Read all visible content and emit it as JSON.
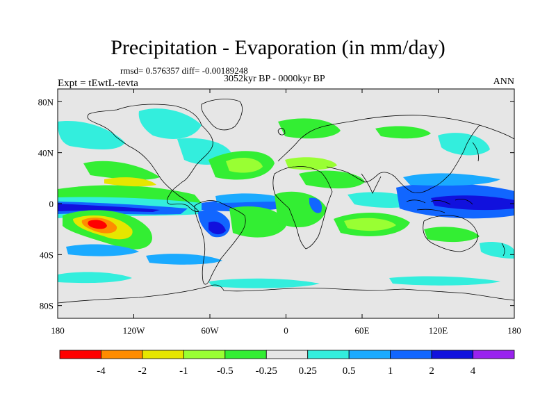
{
  "header": {
    "title": "Precipitation - Evaporation (in mm/day)",
    "stats": "rmsd= 0.576357 diff= -0.00189248",
    "experiment": "Expt = tEwtL-tevta",
    "period": "3052kyr BP - 0000kyr BP",
    "season": "ANN"
  },
  "map": {
    "projection": "cylindrical equidistant",
    "lon_range": [
      -180,
      180
    ],
    "lat_range": [
      -90,
      90
    ],
    "background_color": "#e6e6e6",
    "coastline_color": "#000000",
    "lon_ticks": [
      {
        "value": -180,
        "label": "180"
      },
      {
        "value": -120,
        "label": "120W"
      },
      {
        "value": -60,
        "label": "60W"
      },
      {
        "value": 0,
        "label": "0"
      },
      {
        "value": 60,
        "label": "60E"
      },
      {
        "value": 120,
        "label": "120E"
      },
      {
        "value": 180,
        "label": "180"
      }
    ],
    "lat_ticks": [
      {
        "value": 80,
        "label": "80N"
      },
      {
        "value": 40,
        "label": "40N"
      },
      {
        "value": 0,
        "label": "0"
      },
      {
        "value": -40,
        "label": "40S"
      },
      {
        "value": -80,
        "label": "80S"
      }
    ]
  },
  "colorbar": {
    "colors": [
      "#ff0000",
      "#ff8c00",
      "#e6e600",
      "#99ff33",
      "#33ee33",
      "#e6e6e6",
      "#33eedd",
      "#1aaaff",
      "#1166ff",
      "#1111dd",
      "#9922ee"
    ],
    "labels": [
      "-4",
      "-2",
      "-1",
      "-0.5",
      "-0.25",
      "0.25",
      "0.5",
      "1",
      "2",
      "4"
    ]
  }
}
